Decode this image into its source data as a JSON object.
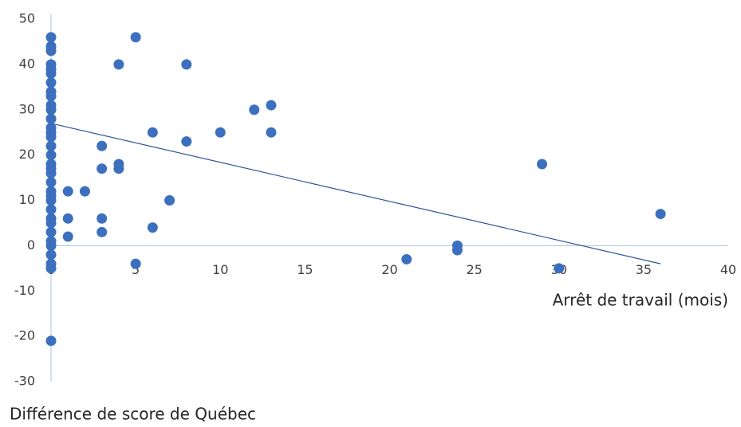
{
  "chart_data": {
    "type": "scatter",
    "x_label": "Arrêt de travail (mois)",
    "y_label": "Différence de score de Québec",
    "x": [
      0,
      0,
      0,
      0,
      0,
      0,
      0,
      0,
      0,
      0,
      0,
      0,
      0,
      0,
      0,
      0,
      0,
      0,
      0,
      0,
      0,
      0,
      0,
      0,
      0,
      0,
      0,
      0,
      0,
      0,
      0,
      0,
      0,
      0,
      1,
      1,
      1,
      2,
      3,
      3,
      3,
      3,
      4,
      4,
      4,
      5,
      5,
      6,
      6,
      7,
      8,
      8,
      10,
      12,
      13,
      13,
      21,
      24,
      24,
      29,
      30,
      36
    ],
    "y": [
      46,
      44,
      43,
      40,
      39,
      38,
      36,
      34,
      33,
      31,
      30,
      28,
      26,
      25,
      24,
      22,
      20,
      18,
      17,
      16,
      14,
      12,
      11,
      10,
      8,
      6,
      5,
      3,
      1,
      0,
      -2,
      -4,
      -5,
      -21,
      12,
      6,
      2,
      12,
      22,
      17,
      6,
      3,
      40,
      18,
      17,
      46,
      -4,
      25,
      4,
      10,
      40,
      23,
      25,
      30,
      31,
      25,
      -3,
      0,
      -1,
      18,
      -5,
      7
    ],
    "color": "#3c70be",
    "trendline": {
      "x": [
        0,
        36
      ],
      "y": [
        27,
        -4
      ],
      "color": "#2f5597"
    },
    "xlim": [
      0,
      40
    ],
    "ylim": [
      -30,
      50
    ],
    "xticks": [
      0,
      5,
      10,
      15,
      20,
      25,
      30,
      35,
      40
    ],
    "yticks": [
      -30,
      -20,
      -10,
      0,
      10,
      20,
      30,
      40,
      50
    ],
    "axis_color": "#a9c0e0"
  }
}
